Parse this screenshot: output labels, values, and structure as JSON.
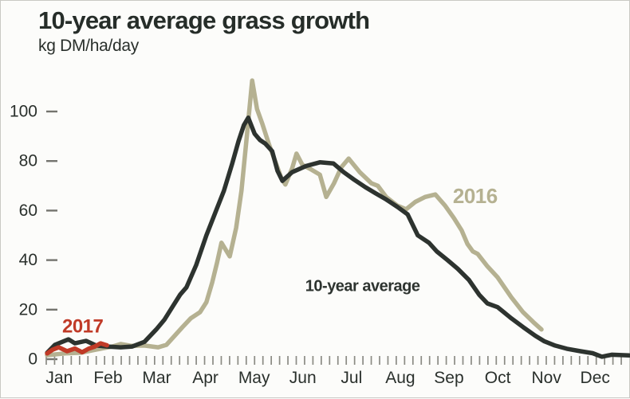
{
  "header": {
    "title": "10-year average grass growth",
    "subtitle": "kg DM/ha/day"
  },
  "colors": {
    "average_line": "#2d332f",
    "line_2016": "#b5b191",
    "line_2017": "#c03a27",
    "text": "#2a302c",
    "tick": "#8b8b84",
    "background": "#fcfcfa"
  },
  "chart_data": {
    "type": "line",
    "title": "10-year average grass growth",
    "ylabel": "kg DM/ha/day",
    "xlabel": "",
    "grid": false,
    "legend_position": "inline-labels",
    "ylim": [
      0,
      115
    ],
    "yticks": [
      0,
      20,
      40,
      60,
      80,
      100
    ],
    "x_unit": "months (0 = start of Jan, 12 = end of Dec)",
    "xtick_labels": [
      "Jan",
      "Feb",
      "Mar",
      "Apr",
      "May",
      "Jun",
      "Jul",
      "Aug",
      "Sep",
      "Oct",
      "Nov",
      "Dec"
    ],
    "series": [
      {
        "name": "10-year average",
        "color": "#2d332f",
        "label": "10-year average",
        "label_at": [
          5.35,
          27.5
        ],
        "points": [
          [
            0.05,
            2.6
          ],
          [
            0.21,
            5.8
          ],
          [
            0.49,
            8
          ],
          [
            0.62,
            6.4
          ],
          [
            0.85,
            7.4
          ],
          [
            1.06,
            5.5
          ],
          [
            1.28,
            5.1
          ],
          [
            1.56,
            4.8
          ],
          [
            1.8,
            5.1
          ],
          [
            2.05,
            7
          ],
          [
            2.29,
            12
          ],
          [
            2.46,
            16
          ],
          [
            2.62,
            21
          ],
          [
            2.78,
            26
          ],
          [
            2.91,
            29
          ],
          [
            3.11,
            38
          ],
          [
            3.32,
            50
          ],
          [
            3.52,
            60
          ],
          [
            3.68,
            68
          ],
          [
            3.85,
            79
          ],
          [
            3.98,
            88
          ],
          [
            4.09,
            94.5
          ],
          [
            4.18,
            97.5
          ],
          [
            4.31,
            91
          ],
          [
            4.42,
            88.5
          ],
          [
            4.53,
            87
          ],
          [
            4.67,
            84
          ],
          [
            4.78,
            76
          ],
          [
            4.88,
            72
          ],
          [
            5.08,
            75.5
          ],
          [
            5.37,
            78
          ],
          [
            5.65,
            79.5
          ],
          [
            5.93,
            79
          ],
          [
            6.14,
            75.5
          ],
          [
            6.35,
            72.5
          ],
          [
            6.58,
            69.5
          ],
          [
            6.79,
            67
          ],
          [
            7.01,
            64.5
          ],
          [
            7.24,
            61.5
          ],
          [
            7.45,
            58.5
          ],
          [
            7.66,
            50
          ],
          [
            7.89,
            47
          ],
          [
            8.05,
            43.5
          ],
          [
            8.27,
            40
          ],
          [
            8.48,
            36.5
          ],
          [
            8.71,
            32
          ],
          [
            8.92,
            26
          ],
          [
            9.09,
            22.5
          ],
          [
            9.3,
            21
          ],
          [
            9.58,
            16.5
          ],
          [
            9.82,
            13
          ],
          [
            10.07,
            9.5
          ],
          [
            10.26,
            7.2
          ],
          [
            10.48,
            5.5
          ],
          [
            10.72,
            4.2
          ],
          [
            11,
            3.2
          ],
          [
            11.25,
            2.4
          ],
          [
            11.44,
            1
          ],
          [
            11.64,
            1.8
          ],
          [
            12,
            1.5
          ]
        ]
      },
      {
        "name": "2016",
        "color": "#b5b191",
        "label": "2016",
        "label_at": [
          8.38,
          63
        ],
        "points": [
          [
            0.05,
            1.6
          ],
          [
            0.41,
            2.3
          ],
          [
            0.74,
            2.6
          ],
          [
            1.06,
            3.9
          ],
          [
            1.39,
            5.1
          ],
          [
            1.56,
            6.1
          ],
          [
            1.77,
            5.4
          ],
          [
            2.05,
            5.5
          ],
          [
            2.33,
            4.8
          ],
          [
            2.5,
            5.8
          ],
          [
            2.67,
            9.5
          ],
          [
            2.83,
            13
          ],
          [
            3,
            16.5
          ],
          [
            3.19,
            19
          ],
          [
            3.32,
            23
          ],
          [
            3.44,
            31
          ],
          [
            3.54,
            39
          ],
          [
            3.63,
            47
          ],
          [
            3.8,
            41.5
          ],
          [
            3.93,
            53
          ],
          [
            4.04,
            68
          ],
          [
            4.14,
            88
          ],
          [
            4.26,
            112.5
          ],
          [
            4.36,
            101
          ],
          [
            4.47,
            95
          ],
          [
            4.6,
            87
          ],
          [
            4.75,
            79
          ],
          [
            4.86,
            73
          ],
          [
            4.94,
            70.5
          ],
          [
            5.08,
            77
          ],
          [
            5.17,
            83
          ],
          [
            5.29,
            78.5
          ],
          [
            5.48,
            76.5
          ],
          [
            5.65,
            74.5
          ],
          [
            5.78,
            65.5
          ],
          [
            5.94,
            71
          ],
          [
            6.09,
            77.5
          ],
          [
            6.24,
            81
          ],
          [
            6.47,
            75.5
          ],
          [
            6.71,
            71
          ],
          [
            6.84,
            70
          ],
          [
            7.01,
            65.5
          ],
          [
            7.24,
            62
          ],
          [
            7.42,
            60.5
          ],
          [
            7.61,
            63.5
          ],
          [
            7.81,
            65.5
          ],
          [
            8.02,
            66.5
          ],
          [
            8.22,
            62
          ],
          [
            8.4,
            57
          ],
          [
            8.56,
            52
          ],
          [
            8.68,
            46.5
          ],
          [
            8.79,
            43.5
          ],
          [
            8.89,
            42.5
          ],
          [
            9.09,
            37.5
          ],
          [
            9.3,
            33
          ],
          [
            9.58,
            25
          ],
          [
            9.82,
            19
          ],
          [
            10.03,
            15
          ],
          [
            10.2,
            12
          ]
        ]
      },
      {
        "name": "2017",
        "color": "#c03a27",
        "label": "2017",
        "label_at": [
          0.36,
          10.8
        ],
        "points": [
          [
            0.05,
            2.3
          ],
          [
            0.16,
            3.8
          ],
          [
            0.29,
            4.8
          ],
          [
            0.46,
            3.2
          ],
          [
            0.62,
            4.3
          ],
          [
            0.77,
            2.8
          ],
          [
            0.9,
            4.2
          ],
          [
            1.02,
            5
          ],
          [
            1.15,
            6.4
          ],
          [
            1.28,
            5.6
          ]
        ]
      }
    ]
  }
}
